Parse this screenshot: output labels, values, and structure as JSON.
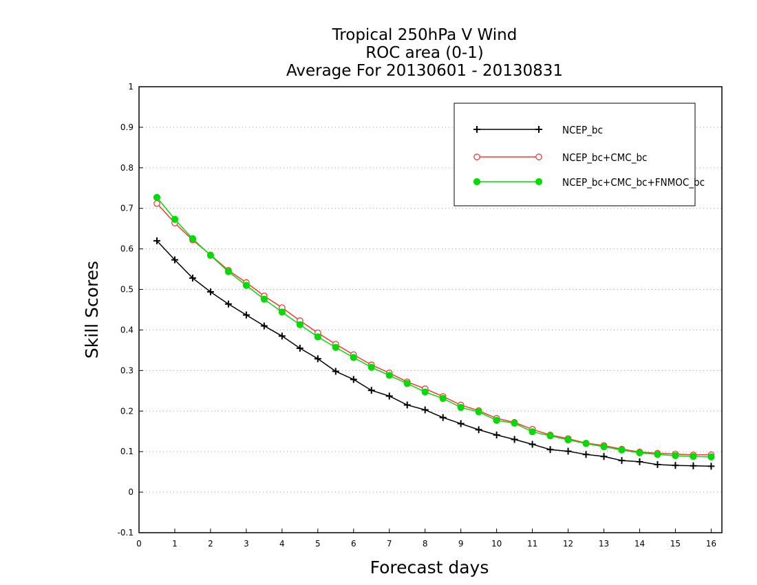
{
  "chart_data": {
    "type": "line",
    "title_lines": [
      "Tropical 250hPa V Wind",
      "ROC area (0-1)",
      "Average For 20130601 - 20130831"
    ],
    "xlabel": "Forecast days",
    "ylabel": "Skill Scores",
    "xlim": [
      0,
      16.3
    ],
    "ylim": [
      -0.1,
      1
    ],
    "x_ticks": [
      "0",
      "1",
      "2",
      "3",
      "4",
      "5",
      "6",
      "7",
      "8",
      "9",
      "10",
      "11",
      "12",
      "13",
      "14",
      "15",
      "16"
    ],
    "y_ticks": [
      "-0.1",
      "0",
      "0.1",
      "0.2",
      "0.3",
      "0.4",
      "0.5",
      "0.6",
      "0.7",
      "0.8",
      "0.9",
      "1"
    ],
    "grid": "horizontal dotted",
    "legend_position": "top-right",
    "x": [
      0.5,
      1,
      1.5,
      2,
      2.5,
      3,
      3.5,
      4,
      4.5,
      5,
      5.5,
      6,
      6.5,
      7,
      7.5,
      8,
      8.5,
      9,
      9.5,
      10,
      10.5,
      11,
      11.5,
      12,
      12.5,
      13,
      13.5,
      14,
      14.5,
      15,
      15.5,
      16
    ],
    "series": [
      {
        "name": "NCEP_bc",
        "color": "#000000",
        "marker": "plus",
        "values": [
          0.62,
          0.573,
          0.528,
          0.494,
          0.464,
          0.437,
          0.41,
          0.385,
          0.355,
          0.329,
          0.298,
          0.278,
          0.251,
          0.237,
          0.215,
          0.203,
          0.184,
          0.169,
          0.154,
          0.141,
          0.13,
          0.118,
          0.105,
          0.101,
          0.093,
          0.088,
          0.078,
          0.075,
          0.068,
          0.066,
          0.065,
          0.064
        ]
      },
      {
        "name": "NCEP_bc+CMC_bc",
        "color": "#ff3333",
        "marker": "open-circle",
        "values": [
          0.712,
          0.664,
          0.622,
          0.585,
          0.547,
          0.517,
          0.484,
          0.455,
          0.423,
          0.393,
          0.365,
          0.339,
          0.314,
          0.294,
          0.272,
          0.255,
          0.236,
          0.215,
          0.201,
          0.182,
          0.172,
          0.155,
          0.141,
          0.132,
          0.121,
          0.115,
          0.106,
          0.099,
          0.096,
          0.094,
          0.092,
          0.092
        ]
      },
      {
        "name": "NCEP_bc+CMC_bc+FNMOC_bc",
        "color": "#00dd00",
        "marker": "filled-circle",
        "values": [
          0.727,
          0.673,
          0.625,
          0.584,
          0.544,
          0.51,
          0.476,
          0.444,
          0.413,
          0.383,
          0.357,
          0.332,
          0.308,
          0.288,
          0.268,
          0.247,
          0.231,
          0.209,
          0.198,
          0.177,
          0.17,
          0.149,
          0.139,
          0.129,
          0.12,
          0.112,
          0.104,
          0.097,
          0.093,
          0.09,
          0.088,
          0.087
        ]
      }
    ]
  }
}
